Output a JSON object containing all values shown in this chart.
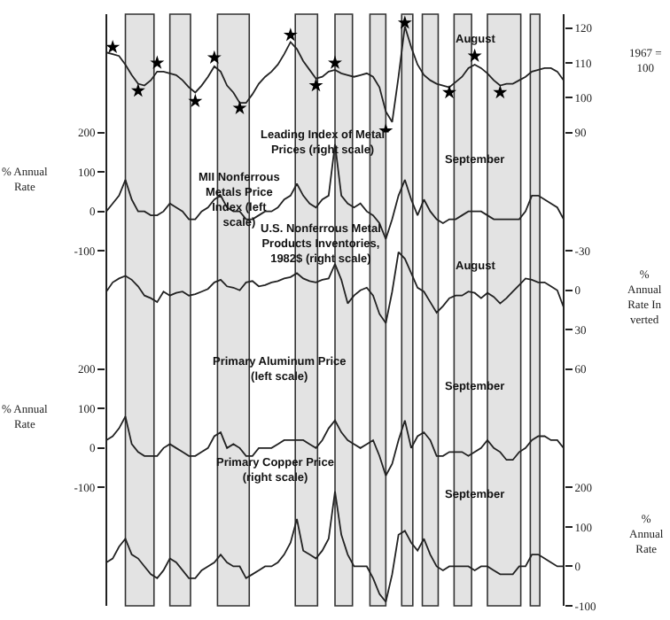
{
  "chart_data": [
    {
      "type": "line",
      "categories": [
        null,
        null,
        null,
        null,
        null,
        null,
        null,
        null,
        null,
        null,
        null,
        null,
        null,
        null,
        null,
        null,
        null,
        null,
        null,
        null,
        null,
        null,
        null,
        null,
        null,
        null,
        null,
        null,
        null,
        null,
        null,
        null,
        null,
        null,
        null,
        null,
        null,
        null,
        null,
        null,
        null,
        null,
        null,
        null,
        null,
        null,
        null,
        null,
        null,
        null,
        null,
        null,
        null,
        null,
        null,
        null,
        null,
        null,
        null,
        null,
        null,
        null,
        null,
        null,
        null,
        null,
        null,
        null,
        null,
        null,
        null,
        null,
        null
      ],
      "series": [
        {
          "name": "Leading Index of Metal Prices (right scale)",
          "color": "#222222",
          "values": [
            113,
            112.5,
            112,
            109.5,
            106.5,
            104,
            103.5,
            105,
            107.5,
            107.5,
            107,
            106.5,
            105,
            103,
            101.5,
            103.5,
            106,
            109,
            107.5,
            103.5,
            101.5,
            98.5,
            98.5,
            101,
            104,
            106,
            107.5,
            109.5,
            112.5,
            116,
            114,
            110.5,
            108,
            105.5,
            106,
            107.5,
            108,
            107,
            106.5,
            106,
            106.5,
            107,
            106,
            103,
            96,
            93,
            106,
            120.5,
            114.5,
            109.5,
            106.5,
            105,
            104,
            103.5,
            103,
            104.5,
            106,
            108.5,
            109.5,
            108.5,
            107,
            105,
            103.5,
            104,
            104,
            105,
            106,
            107.5,
            108,
            108.5,
            108.5,
            107.5,
            105
          ]
        },
        {
          "type": "scatter",
          "marker": "star",
          "color": "#000000",
          "values": [
            null,
            114.5,
            null,
            null,
            null,
            102,
            null,
            null,
            110,
            null,
            null,
            null,
            null,
            null,
            99,
            null,
            null,
            111.5,
            null,
            null,
            null,
            97,
            null,
            null,
            null,
            null,
            null,
            null,
            null,
            118,
            null,
            null,
            null,
            103.5,
            null,
            null,
            110,
            null,
            null,
            null,
            null,
            null,
            null,
            null,
            90.5,
            null,
            null,
            121.5,
            null,
            null,
            null,
            null,
            null,
            null,
            101.5,
            null,
            null,
            null,
            112,
            null,
            null,
            null,
            101.5,
            null,
            null,
            null,
            null,
            null,
            null,
            null,
            null,
            null,
            null
          ]
        }
      ],
      "ylim": [
        90,
        124
      ],
      "yticks": [
        90,
        100,
        110,
        120
      ],
      "ylabel": "1967 = 100",
      "annotations": [
        "August"
      ],
      "legend": false,
      "grid": false,
      "tick_labels": "y"
    },
    {
      "type": "line",
      "categories": [
        null,
        null,
        null,
        null,
        null,
        null,
        null,
        null,
        null,
        null,
        null,
        null,
        null,
        null,
        null,
        null,
        null,
        null,
        null,
        null,
        null,
        null,
        null,
        null,
        null,
        null,
        null,
        null,
        null,
        null,
        null,
        null,
        null,
        null,
        null,
        null,
        null,
        null,
        null,
        null,
        null,
        null,
        null,
        null,
        null,
        null,
        null,
        null,
        null,
        null,
        null,
        null,
        null,
        null,
        null,
        null,
        null,
        null,
        null,
        null,
        null,
        null,
        null,
        null,
        null,
        null,
        null,
        null,
        null,
        null,
        null,
        null,
        null
      ],
      "series": [
        {
          "name": "MII Nonferrous Metals Price Index (left scale)",
          "color": "#222222",
          "values": [
            0,
            20,
            40,
            80,
            30,
            0,
            0,
            -10,
            -10,
            0,
            20,
            10,
            0,
            -20,
            -20,
            0,
            10,
            30,
            40,
            10,
            0,
            0,
            -20,
            -20,
            -10,
            0,
            0,
            10,
            30,
            40,
            70,
            40,
            20,
            10,
            30,
            40,
            170,
            40,
            20,
            10,
            20,
            0,
            -10,
            -30,
            -70,
            -20,
            40,
            80,
            30,
            -10,
            30,
            0,
            -20,
            -30,
            -20,
            -20,
            -10,
            0,
            0,
            0,
            -10,
            -20,
            -20,
            -20,
            -20,
            -20,
            0,
            40,
            40,
            30,
            20,
            10,
            -20
          ]
        }
      ],
      "ylim": [
        -100,
        200
      ],
      "yticks": [
        -100,
        0,
        100,
        200
      ],
      "ylabel": "% Annual Rate",
      "annotations": [
        "September"
      ],
      "legend": false,
      "grid": false,
      "tick_labels": "y"
    },
    {
      "type": "line",
      "categories": [
        null,
        null,
        null,
        null,
        null,
        null,
        null,
        null,
        null,
        null,
        null,
        null,
        null,
        null,
        null,
        null,
        null,
        null,
        null,
        null,
        null,
        null,
        null,
        null,
        null,
        null,
        null,
        null,
        null,
        null,
        null,
        null,
        null,
        null,
        null,
        null,
        null,
        null,
        null,
        null,
        null,
        null,
        null,
        null,
        null,
        null,
        null,
        null,
        null,
        null,
        null,
        null,
        null,
        null,
        null,
        null,
        null,
        null,
        null,
        null,
        null,
        null,
        null,
        null,
        null,
        null,
        null,
        null,
        null,
        null,
        null,
        null,
        null
      ],
      "series": [
        {
          "name": "U.S. Nonferrous Metal Products Inventories, 1982$ (right scale)",
          "color": "#222222",
          "values": [
            1,
            -6,
            -9,
            -11,
            -8,
            -3,
            4,
            6,
            9,
            1,
            4,
            2,
            1,
            4,
            3,
            1,
            -1,
            -6,
            -8,
            -3,
            -2,
            0,
            -6,
            -7,
            -3,
            -4,
            -6,
            -7,
            -9,
            -10,
            -13,
            -9,
            -7,
            -6,
            -8,
            -9,
            -20,
            -8,
            10,
            4,
            0,
            -2,
            4,
            18,
            25,
            1,
            -29,
            -24,
            -13,
            -2,
            1,
            9,
            17,
            12,
            6,
            4,
            4,
            1,
            2,
            6,
            2,
            5,
            10,
            6,
            1,
            -4,
            -9,
            -8,
            -6,
            -6,
            -3,
            0,
            13
          ]
        }
      ],
      "ylim": [
        60,
        -30
      ],
      "yticks": [
        -30,
        0,
        30,
        60
      ],
      "ylabel": "% Annual Rate Inverted",
      "annotations": [
        "August"
      ],
      "legend": false,
      "grid": false,
      "tick_labels": "y"
    },
    {
      "type": "line",
      "categories": [
        null,
        null,
        null,
        null,
        null,
        null,
        null,
        null,
        null,
        null,
        null,
        null,
        null,
        null,
        null,
        null,
        null,
        null,
        null,
        null,
        null,
        null,
        null,
        null,
        null,
        null,
        null,
        null,
        null,
        null,
        null,
        null,
        null,
        null,
        null,
        null,
        null,
        null,
        null,
        null,
        null,
        null,
        null,
        null,
        null,
        null,
        null,
        null,
        null,
        null,
        null,
        null,
        null,
        null,
        null,
        null,
        null,
        null,
        null,
        null,
        null,
        null,
        null,
        null,
        null,
        null,
        null,
        null,
        null,
        null,
        null,
        null,
        null
      ],
      "series": [
        {
          "name": "Primary Aluminum Price (left scale)",
          "color": "#222222",
          "values": [
            20,
            30,
            50,
            80,
            10,
            -10,
            -20,
            -20,
            -20,
            0,
            10,
            0,
            -10,
            -20,
            -20,
            -10,
            0,
            30,
            40,
            0,
            10,
            0,
            -20,
            -20,
            0,
            0,
            0,
            10,
            20,
            20,
            20,
            20,
            10,
            0,
            20,
            50,
            70,
            40,
            20,
            10,
            0,
            10,
            20,
            -20,
            -70,
            -40,
            20,
            70,
            0,
            30,
            40,
            20,
            -20,
            -20,
            -10,
            -10,
            -10,
            -20,
            -10,
            0,
            20,
            0,
            -10,
            -30,
            -30,
            -10,
            0,
            20,
            30,
            30,
            20,
            20,
            0
          ]
        }
      ],
      "ylim": [
        -100,
        200
      ],
      "yticks": [
        -100,
        0,
        100,
        200
      ],
      "ylabel": "% Annual Rate",
      "annotations": [
        "September"
      ],
      "legend": false,
      "grid": false,
      "tick_labels": "y"
    },
    {
      "type": "line",
      "categories": [
        null,
        null,
        null,
        null,
        null,
        null,
        null,
        null,
        null,
        null,
        null,
        null,
        null,
        null,
        null,
        null,
        null,
        null,
        null,
        null,
        null,
        null,
        null,
        null,
        null,
        null,
        null,
        null,
        null,
        null,
        null,
        null,
        null,
        null,
        null,
        null,
        null,
        null,
        null,
        null,
        null,
        null,
        null,
        null,
        null,
        null,
        null,
        null,
        null,
        null,
        null,
        null,
        null,
        null,
        null,
        null,
        null,
        null,
        null,
        null,
        null,
        null,
        null,
        null,
        null,
        null,
        null,
        null,
        null,
        null,
        null,
        null,
        null
      ],
      "series": [
        {
          "name": "Primary Copper Price (right scale)",
          "color": "#222222",
          "values": [
            10,
            20,
            50,
            70,
            30,
            20,
            0,
            -20,
            -30,
            -10,
            20,
            10,
            -10,
            -30,
            -30,
            -10,
            0,
            10,
            30,
            10,
            0,
            0,
            -30,
            -20,
            -10,
            0,
            0,
            10,
            30,
            60,
            120,
            40,
            30,
            20,
            40,
            70,
            190,
            80,
            30,
            0,
            0,
            0,
            -30,
            -70,
            -90,
            -20,
            80,
            90,
            60,
            40,
            70,
            30,
            0,
            -10,
            0,
            0,
            0,
            0,
            -10,
            0,
            0,
            -10,
            -20,
            -20,
            -20,
            0,
            0,
            30,
            30,
            20,
            10,
            0,
            0
          ]
        }
      ],
      "ylim": [
        -100,
        200
      ],
      "yticks": [
        -100,
        0,
        100,
        200
      ],
      "ylabel": "% Annual Rate",
      "annotations": [
        "September"
      ],
      "legend": false,
      "grid": false,
      "tick_labels": "y"
    }
  ]
}
